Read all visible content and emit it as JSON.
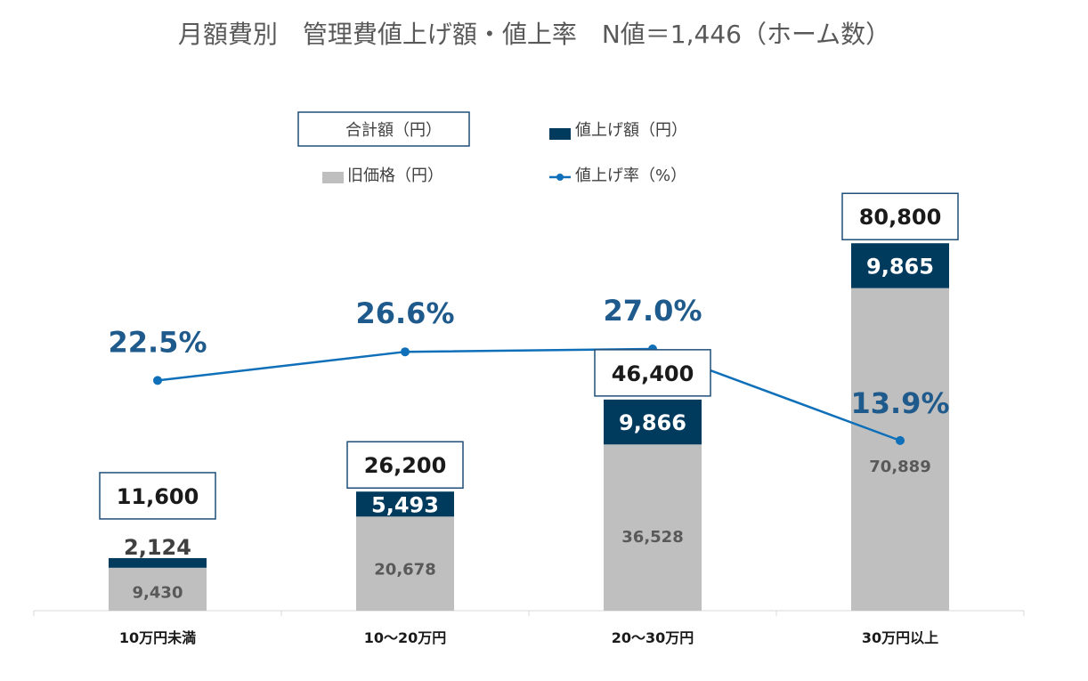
{
  "chart_data": {
    "type": "bar",
    "title": "月額費別　管理費値上げ額・値上率　N値＝1,446（ホーム数）",
    "categories": [
      "10万円未満",
      "10～20万円",
      "20～30万円",
      "30万円以上"
    ],
    "series": [
      {
        "name": "旧価格（円）",
        "kind": "stacked-bar",
        "values": [
          9430,
          20678,
          36528,
          70889
        ],
        "color": "#bfbfbf"
      },
      {
        "name": "値上げ額（円）",
        "kind": "stacked-bar",
        "values": [
          2124,
          5493,
          9866,
          9865
        ],
        "color": "#003a5d"
      },
      {
        "name": "合計額（円）",
        "kind": "total-label",
        "values": [
          11600,
          26200,
          46400,
          80800
        ],
        "labels": [
          "11,600",
          "26,200",
          "46,400",
          "80,800"
        ],
        "color": "#1f4e79"
      },
      {
        "name": "値上げ率（%）",
        "kind": "line",
        "values": [
          22.5,
          26.6,
          27.0,
          13.9
        ],
        "color": "#0f6fb8"
      }
    ],
    "old_labels": [
      "9,430",
      "20,678",
      "36,528",
      "70,889"
    ],
    "increase_labels": [
      "2,124",
      "5,493",
      "9,866",
      "9,865"
    ],
    "rate_labels": [
      "22.5%",
      "26.6%",
      "27.0%",
      "13.9%"
    ],
    "legend": [
      {
        "label": "合計額（円）",
        "marker": "outlined-box"
      },
      {
        "label": "値上げ額（円）",
        "marker": "square"
      },
      {
        "label": "旧価格（円）",
        "marker": "square"
      },
      {
        "label": "値上げ率（%）",
        "marker": "line-dot"
      }
    ],
    "legend_placement": "top-center",
    "grid": false,
    "xlabel": "",
    "ylabel": ""
  }
}
